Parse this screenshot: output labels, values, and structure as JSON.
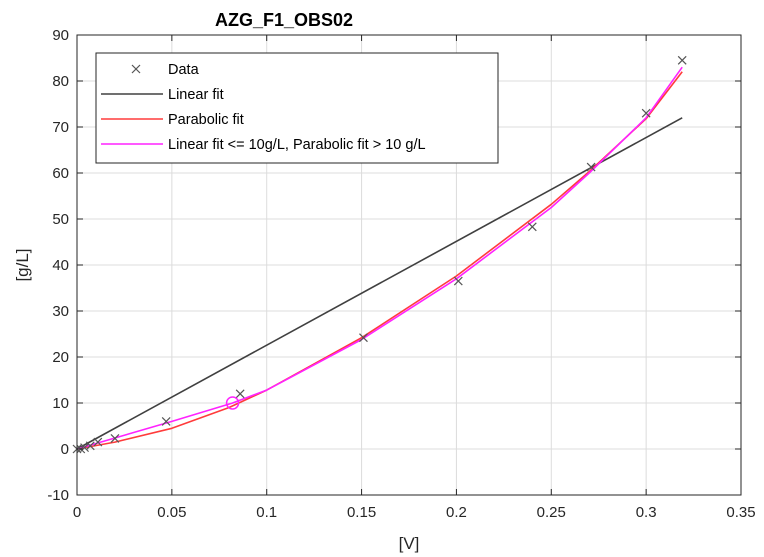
{
  "chart_data": {
    "type": "line",
    "title": "AZG_F1_OBS02",
    "xlabel": "[V]",
    "ylabel": "[g/L]",
    "xlim": [
      0,
      0.35
    ],
    "ylim": [
      -10,
      90
    ],
    "xticks": [
      0,
      0.05,
      0.1,
      0.15,
      0.2,
      0.25,
      0.3,
      0.35
    ],
    "xtick_labels": [
      "0",
      "0.05",
      "0.1",
      "0.15",
      "0.2",
      "0.25",
      "0.3",
      "0.35"
    ],
    "yticks": [
      -10,
      0,
      10,
      20,
      30,
      40,
      50,
      60,
      70,
      80,
      90
    ],
    "ytick_labels": [
      "-10",
      "0",
      "10",
      "20",
      "30",
      "40",
      "50",
      "60",
      "70",
      "80",
      "90"
    ],
    "grid": true,
    "legend_position": "top-left",
    "series": [
      {
        "name": "Data",
        "kind": "scatter",
        "marker": "x",
        "color": "#555555",
        "x": [
          0.0,
          0.002,
          0.004,
          0.007,
          0.011,
          0.02,
          0.047,
          0.086,
          0.151,
          0.201,
          0.24,
          0.271,
          0.3,
          0.319
        ],
        "y": [
          0.0,
          0.0,
          0.3,
          0.7,
          1.5,
          2.3,
          6.0,
          12.0,
          24.2,
          36.5,
          48.3,
          61.3,
          73.0,
          84.5
        ]
      },
      {
        "name": "Linear fit",
        "kind": "line",
        "color": "#404040",
        "x": [
          0.0,
          0.319
        ],
        "y": [
          0.0,
          72.0
        ]
      },
      {
        "name": "Parabolic fit",
        "kind": "line",
        "color": "#ff3b3b",
        "x": [
          0.0,
          0.02,
          0.05,
          0.08,
          0.1,
          0.15,
          0.2,
          0.25,
          0.27,
          0.3,
          0.319
        ],
        "y": [
          0.0,
          1.5,
          4.5,
          9.0,
          12.8,
          24.2,
          37.6,
          53.2,
          60.3,
          71.8,
          82.0
        ]
      },
      {
        "name": "Linear fit <= 10g/L, Parabolic fit > 10 g/L",
        "kind": "line",
        "color": "#ff22ff",
        "x": [
          0.0,
          0.02,
          0.05,
          0.082,
          0.1,
          0.15,
          0.2,
          0.25,
          0.27,
          0.3,
          0.319
        ],
        "y": [
          0.0,
          2.4,
          6.0,
          10.0,
          12.8,
          23.8,
          37.0,
          52.5,
          60.0,
          72.0,
          83.0
        ]
      }
    ],
    "annotations": [
      {
        "kind": "circle-marker",
        "x": 0.082,
        "y": 10.0,
        "color": "#ff22ff"
      }
    ]
  }
}
